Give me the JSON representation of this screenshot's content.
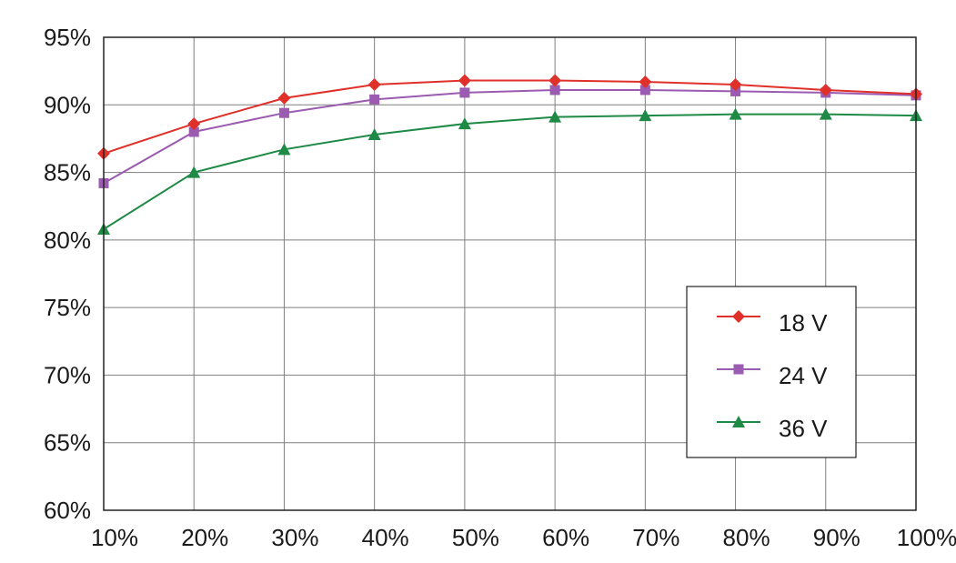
{
  "chart_data": {
    "type": "line",
    "title": "",
    "xlabel": "",
    "ylabel": "",
    "categories": [
      "10%",
      "20%",
      "30%",
      "40%",
      "50%",
      "60%",
      "70%",
      "80%",
      "90%",
      "100%"
    ],
    "ylim": [
      60,
      95
    ],
    "yticks": [
      "60%",
      "65%",
      "70%",
      "75%",
      "80%",
      "85%",
      "90%",
      "95%"
    ],
    "grid": true,
    "legend_position": "lower-right",
    "series": [
      {
        "name": "18 V",
        "color": "#e0302a",
        "marker": "diamond",
        "values": [
          86.4,
          88.6,
          90.5,
          91.5,
          91.8,
          91.8,
          91.7,
          91.5,
          91.1,
          90.8
        ]
      },
      {
        "name": "24 V",
        "color": "#9b5bb0",
        "marker": "square",
        "values": [
          84.2,
          88.0,
          89.4,
          90.4,
          90.9,
          91.1,
          91.1,
          91.0,
          90.9,
          90.7
        ]
      },
      {
        "name": "36 V",
        "color": "#1f8a45",
        "marker": "triangle",
        "values": [
          80.8,
          85.0,
          86.7,
          87.8,
          88.6,
          89.1,
          89.2,
          89.3,
          89.3,
          89.2
        ]
      }
    ]
  }
}
